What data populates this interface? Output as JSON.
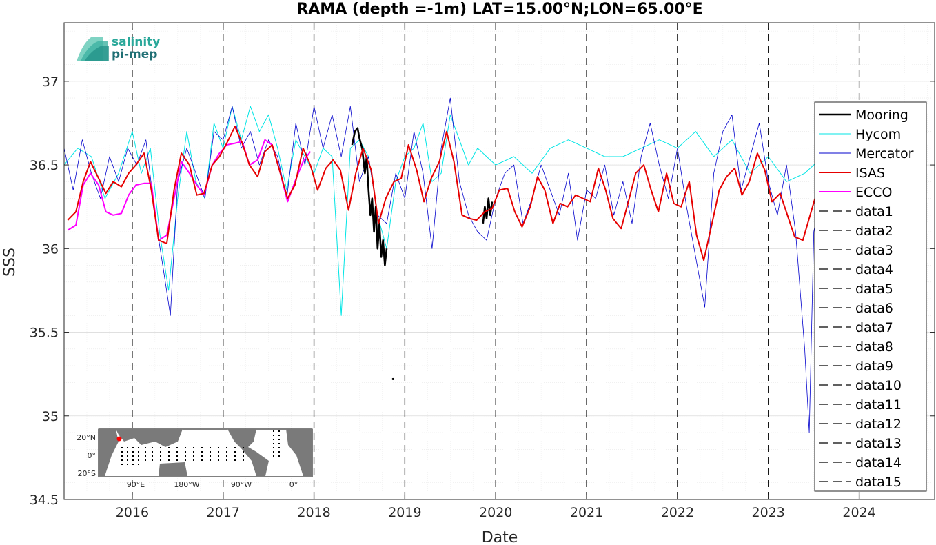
{
  "chart_data": {
    "type": "line",
    "title": "RAMA (depth =-1m) LAT=15.00°N;LON=65.00°E",
    "xlabel": "Date",
    "ylabel": "SSS",
    "xlim": [
      2015.25,
      2024.83
    ],
    "ylim": [
      34.5,
      37.35
    ],
    "x_ticks": [
      2016,
      2017,
      2018,
      2019,
      2020,
      2021,
      2022,
      2023,
      2024
    ],
    "x_tick_labels": [
      "2016",
      "2017",
      "2018",
      "2019",
      "2020",
      "2021",
      "2022",
      "2023",
      "2024"
    ],
    "y_ticks": [
      34.5,
      35,
      35.5,
      36,
      36.5,
      37
    ],
    "y_tick_labels": [
      "34.5",
      "35",
      "35.5",
      "36",
      "36.5",
      "37"
    ],
    "grid": true,
    "legend_position": "right",
    "vlines": [
      2016,
      2017,
      2018,
      2019,
      2020,
      2021,
      2022,
      2023,
      2024
    ],
    "series": [
      {
        "name": "Mooring",
        "color": "#000000",
        "x": [
          2018.42,
          2018.45,
          2018.48,
          2018.5,
          2018.53,
          2018.56,
          2018.58,
          2018.6,
          2018.62,
          2018.64,
          2018.66,
          2018.68,
          2018.7,
          2018.72,
          2018.74,
          2018.76,
          2018.78,
          2018.8,
          null,
          2019.86,
          2019.88,
          2019.9,
          2019.92,
          2019.94,
          2019.96
        ],
        "y": [
          36.62,
          36.7,
          36.72,
          36.66,
          36.6,
          36.45,
          36.55,
          36.35,
          36.2,
          36.3,
          36.1,
          36.25,
          36.0,
          36.15,
          35.95,
          36.05,
          35.9,
          36.0,
          null,
          36.15,
          36.25,
          36.18,
          36.3,
          36.2,
          36.28
        ],
        "extra_points": [
          [
            2018.87,
            35.22
          ]
        ]
      },
      {
        "name": "Hycom",
        "color": "#00e5e5",
        "x": [
          2015.25,
          2015.4,
          2015.55,
          2015.7,
          2015.85,
          2016.0,
          2016.1,
          2016.2,
          2016.3,
          2016.4,
          2016.5,
          2016.6,
          2016.7,
          2016.8,
          2016.9,
          2017.0,
          2017.1,
          2017.2,
          2017.3,
          2017.4,
          2017.5,
          2017.6,
          2017.7,
          2017.8,
          2017.9,
          2018.0,
          2018.1,
          2018.2,
          2018.3,
          2018.4,
          2018.5,
          2018.6,
          2018.7,
          2018.8,
          2018.9,
          2019.0,
          2019.1,
          2019.2,
          2019.3,
          2019.4,
          2019.5,
          2019.6,
          2019.7,
          2019.8,
          2019.9,
          2020.0,
          2020.2,
          2020.4,
          2020.6,
          2020.8,
          2021.0,
          2021.2,
          2021.4,
          2021.6,
          2021.8,
          2022.0,
          2022.2,
          2022.4,
          2022.6,
          2022.8,
          2023.0,
          2023.2,
          2023.4,
          2023.6
        ],
        "y": [
          36.5,
          36.6,
          36.55,
          36.3,
          36.45,
          36.7,
          36.45,
          36.6,
          36.1,
          35.75,
          36.3,
          36.7,
          36.4,
          36.3,
          36.75,
          36.6,
          36.85,
          36.65,
          36.85,
          36.7,
          36.8,
          36.6,
          36.35,
          36.65,
          36.55,
          36.45,
          36.6,
          36.55,
          35.6,
          36.6,
          36.65,
          36.55,
          36.2,
          36.0,
          36.4,
          36.55,
          36.6,
          36.75,
          36.4,
          36.45,
          36.8,
          36.65,
          36.5,
          36.6,
          36.55,
          36.5,
          36.55,
          36.45,
          36.6,
          36.65,
          36.6,
          36.55,
          36.55,
          36.6,
          36.65,
          36.6,
          36.7,
          36.55,
          36.65,
          36.45,
          36.55,
          36.4,
          36.45,
          36.55
        ]
      },
      {
        "name": "Mercator",
        "color": "#0000cc",
        "x": [
          2015.25,
          2015.35,
          2015.45,
          2015.55,
          2015.65,
          2015.75,
          2015.85,
          2015.95,
          2016.05,
          2016.15,
          2016.25,
          2016.35,
          2016.42,
          2016.5,
          2016.6,
          2016.7,
          2016.8,
          2016.9,
          2017.0,
          2017.1,
          2017.2,
          2017.3,
          2017.4,
          2017.5,
          2017.6,
          2017.7,
          2017.8,
          2017.9,
          2018.0,
          2018.1,
          2018.2,
          2018.3,
          2018.4,
          2018.5,
          2018.6,
          2018.7,
          2018.8,
          2018.9,
          2019.0,
          2019.1,
          2019.2,
          2019.3,
          2019.4,
          2019.5,
          2019.6,
          2019.7,
          2019.8,
          2019.9,
          2020.0,
          2020.1,
          2020.2,
          2020.3,
          2020.4,
          2020.5,
          2020.6,
          2020.7,
          2020.8,
          2020.9,
          2021.0,
          2021.1,
          2021.2,
          2021.3,
          2021.4,
          2021.5,
          2021.6,
          2021.7,
          2021.8,
          2021.9,
          2022.0,
          2022.1,
          2022.2,
          2022.3,
          2022.4,
          2022.5,
          2022.6,
          2022.7,
          2022.8,
          2022.9,
          2023.0,
          2023.1,
          2023.2,
          2023.3,
          2023.4,
          2023.45,
          2023.5,
          2023.6,
          2023.7
        ],
        "y": [
          36.6,
          36.35,
          36.65,
          36.45,
          36.3,
          36.55,
          36.4,
          36.6,
          36.5,
          36.65,
          36.2,
          35.85,
          35.6,
          36.4,
          36.6,
          36.45,
          36.3,
          36.7,
          36.65,
          36.85,
          36.6,
          36.7,
          36.5,
          36.65,
          36.55,
          36.3,
          36.75,
          36.5,
          36.85,
          36.6,
          36.8,
          36.55,
          36.85,
          36.4,
          36.55,
          36.2,
          36.15,
          36.45,
          36.3,
          36.7,
          36.45,
          36.0,
          36.6,
          36.9,
          36.4,
          36.2,
          36.1,
          36.05,
          36.3,
          36.45,
          36.5,
          36.15,
          36.3,
          36.5,
          36.35,
          36.2,
          36.45,
          36.05,
          36.35,
          36.3,
          36.5,
          36.2,
          36.4,
          36.15,
          36.55,
          36.75,
          36.5,
          36.3,
          36.6,
          36.25,
          35.95,
          35.65,
          36.45,
          36.7,
          36.8,
          36.35,
          36.55,
          36.75,
          36.4,
          36.2,
          36.5,
          36.1,
          35.4,
          34.9,
          36.1,
          36.4,
          36.6
        ]
      },
      {
        "name": "ISAS",
        "color": "#e60000",
        "x": [
          2015.29,
          2015.38,
          2015.46,
          2015.54,
          2015.63,
          2015.71,
          2015.79,
          2015.88,
          2015.96,
          2016.04,
          2016.13,
          2016.21,
          2016.29,
          2016.38,
          2016.46,
          2016.54,
          2016.63,
          2016.71,
          2016.79,
          2016.88,
          2016.96,
          2017.04,
          2017.13,
          2017.21,
          2017.29,
          2017.38,
          2017.46,
          2017.54,
          2017.63,
          2017.71,
          2017.79,
          2017.88,
          2017.96,
          2018.04,
          2018.13,
          2018.21,
          2018.29,
          2018.38,
          2018.46,
          2018.54,
          2018.63,
          2018.71,
          2018.79,
          2018.88,
          2018.96,
          2019.04,
          2019.13,
          2019.21,
          2019.29,
          2019.38,
          2019.46,
          2019.54,
          2019.63,
          2019.71,
          2019.79,
          2019.88,
          2019.96,
          2020.04,
          2020.13,
          2020.21,
          2020.29,
          2020.38,
          2020.46,
          2020.54,
          2020.63,
          2020.71,
          2020.79,
          2020.88,
          2020.96,
          2021.04,
          2021.13,
          2021.21,
          2021.29,
          2021.38,
          2021.46,
          2021.54,
          2021.63,
          2021.71,
          2021.79,
          2021.88,
          2021.96,
          2022.04,
          2022.13,
          2022.21,
          2022.29,
          2022.38,
          2022.46,
          2022.54,
          2022.63,
          2022.71,
          2022.79,
          2022.88,
          2022.96,
          2023.04,
          2023.13,
          2023.21,
          2023.29,
          2023.38,
          2023.46,
          2023.54,
          2023.63
        ],
        "y": [
          36.17,
          36.22,
          36.4,
          36.52,
          36.42,
          36.33,
          36.4,
          36.37,
          36.45,
          36.5,
          36.57,
          36.35,
          36.05,
          36.03,
          36.35,
          36.57,
          36.5,
          36.32,
          36.33,
          36.5,
          36.55,
          36.63,
          36.73,
          36.63,
          36.5,
          36.43,
          36.58,
          36.62,
          36.45,
          36.3,
          36.38,
          36.6,
          36.5,
          36.35,
          36.48,
          36.53,
          36.47,
          36.23,
          36.45,
          36.6,
          36.47,
          36.15,
          36.3,
          36.4,
          36.42,
          36.62,
          36.47,
          36.28,
          36.42,
          36.52,
          36.7,
          36.52,
          36.2,
          36.18,
          36.17,
          36.22,
          36.24,
          36.35,
          36.36,
          36.22,
          36.13,
          36.25,
          36.43,
          36.35,
          36.15,
          36.27,
          36.25,
          36.32,
          36.3,
          36.28,
          36.48,
          36.35,
          36.18,
          36.12,
          36.28,
          36.45,
          36.5,
          36.35,
          36.22,
          36.45,
          36.27,
          36.25,
          36.4,
          36.08,
          35.93,
          36.15,
          36.35,
          36.43,
          36.48,
          36.32,
          36.4,
          36.57,
          36.47,
          36.28,
          36.33,
          36.2,
          36.07,
          36.05,
          36.2,
          36.35,
          36.45
        ]
      },
      {
        "name": "ECCO",
        "color": "#ff00ff",
        "x": [
          2015.29,
          2015.38,
          2015.46,
          2015.54,
          2015.63,
          2015.71,
          2015.79,
          2015.88,
          2015.96,
          2016.04,
          2016.13,
          2016.21,
          2016.29,
          2016.38,
          2016.46,
          2016.54,
          2016.63,
          2016.71,
          2016.79,
          2016.88,
          2016.96,
          2017.04,
          2017.13,
          2017.21,
          2017.29,
          2017.38,
          2017.46,
          2017.54,
          2017.63,
          2017.71,
          2017.79,
          2017.88,
          2017.96
        ],
        "y": [
          36.11,
          36.14,
          36.38,
          36.45,
          36.38,
          36.22,
          36.2,
          36.21,
          36.32,
          36.38,
          36.39,
          36.39,
          36.05,
          36.08,
          36.3,
          36.52,
          36.45,
          36.38,
          36.32,
          36.5,
          36.57,
          36.62,
          36.63,
          36.64,
          36.5,
          36.53,
          36.65,
          36.62,
          36.45,
          36.28,
          36.4,
          36.52,
          36.58
        ]
      }
    ],
    "dashed_series": [
      "data1",
      "data2",
      "data3",
      "data4",
      "data5",
      "data6",
      "data7",
      "data8",
      "data9",
      "data10",
      "data11",
      "data12",
      "data13",
      "data14",
      "data15"
    ]
  },
  "logo": {
    "line1": "salinity",
    "line2": "pi-mep"
  },
  "inset_map": {
    "lat_labels": [
      "20°N",
      "0°",
      "20°S"
    ],
    "lon_labels": [
      "90°E",
      "180°W",
      "90°W",
      "0°"
    ],
    "marker_color": "#ff0000"
  }
}
